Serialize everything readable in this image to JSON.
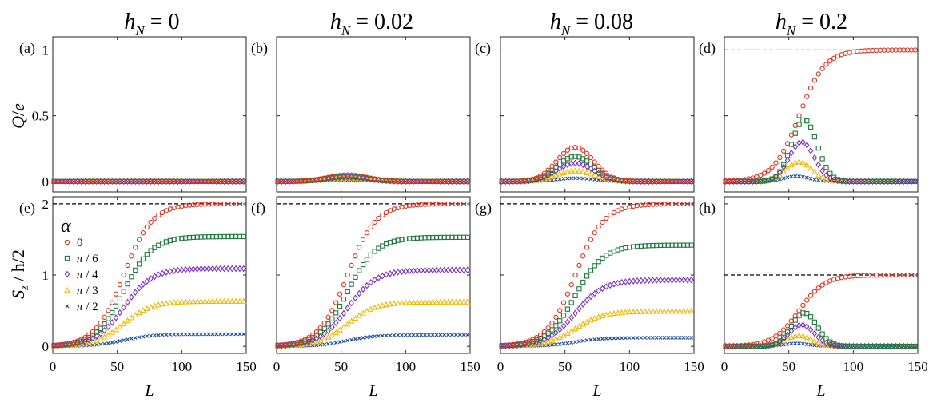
{
  "figure": {
    "column_titles": [
      {
        "h": "h",
        "sub": "N",
        "eq": " = 0"
      },
      {
        "h": "h",
        "sub": "N",
        "eq": " = 0.02"
      },
      {
        "h": "h",
        "sub": "N",
        "eq": " = 0.08"
      },
      {
        "h": "h",
        "sub": "N",
        "eq": " = 0.2"
      }
    ],
    "panel_labels": [
      "(a)",
      "(b)",
      "(c)",
      "(d)",
      "(e)",
      "(f)",
      "(g)",
      "(h)"
    ],
    "row_ylabels": [
      "Q/e",
      "Sz/(ħ/2)"
    ],
    "legend_title": "α",
    "x_label": "L",
    "x_ticks": [
      "0",
      "50",
      "100",
      "150"
    ],
    "q_ticks": [
      "0",
      "0.5",
      "1"
    ],
    "s_ticks": [
      "0",
      "1",
      "2"
    ]
  },
  "chart_data": {
    "type": "scatter",
    "x": {
      "min": 1,
      "max": 150,
      "step": 3,
      "lim": [
        0,
        150
      ],
      "label": "L"
    },
    "series": [
      {
        "name": "0",
        "label": "0",
        "marker": "circle",
        "color": "#e0301e"
      },
      {
        "name": "π/6",
        "label": "π / 6",
        "marker": "square",
        "color": "#1e7a3c"
      },
      {
        "name": "π/4",
        "label": "π / 4",
        "marker": "diamond",
        "color": "#7b2fbf"
      },
      {
        "name": "π/3",
        "label": "π / 3",
        "marker": "triangle",
        "color": "#f0b800"
      },
      {
        "name": "π/2",
        "label": "π / 2",
        "marker": "x",
        "color": "#1f4e9c"
      }
    ],
    "panels": [
      {
        "id": "a",
        "row": "Q",
        "hN": 0,
        "ylim": [
          -0.08,
          1.1
        ],
        "ylabel": "Q/e",
        "curves": [
          {
            "kind": "flat",
            "value": 0
          },
          {
            "kind": "flat",
            "value": 0
          },
          {
            "kind": "flat",
            "value": 0
          },
          {
            "kind": "flat",
            "value": 0
          },
          {
            "kind": "flat",
            "value": 0
          }
        ]
      },
      {
        "id": "b",
        "row": "Q",
        "hN": 0.02,
        "ylim": [
          -0.08,
          1.1
        ],
        "curves": [
          {
            "kind": "bump",
            "peak": 0.05,
            "center": 55,
            "width": 22
          },
          {
            "kind": "bump",
            "peak": 0.04,
            "center": 55,
            "width": 22
          },
          {
            "kind": "bump",
            "peak": 0.035,
            "center": 55,
            "width": 22
          },
          {
            "kind": "bump",
            "peak": 0.025,
            "center": 55,
            "width": 22
          },
          {
            "kind": "bump",
            "peak": 0.01,
            "center": 55,
            "width": 22
          }
        ]
      },
      {
        "id": "c",
        "row": "Q",
        "hN": 0.08,
        "ylim": [
          -0.08,
          1.1
        ],
        "curves": [
          {
            "kind": "bump",
            "peak": 0.26,
            "center": 58,
            "width": 20
          },
          {
            "kind": "bump",
            "peak": 0.19,
            "center": 58,
            "width": 20
          },
          {
            "kind": "bump",
            "peak": 0.14,
            "center": 58,
            "width": 20
          },
          {
            "kind": "bump",
            "peak": 0.08,
            "center": 58,
            "width": 20
          },
          {
            "kind": "bump",
            "peak": 0.025,
            "center": 58,
            "width": 20
          }
        ]
      },
      {
        "id": "d",
        "row": "Q",
        "hN": 0.2,
        "ylim": [
          -0.08,
          1.1
        ],
        "ref_line": 1,
        "curves": [
          {
            "kind": "sigmoid",
            "final": 1.0,
            "mid": 58,
            "scale": 10
          },
          {
            "kind": "bump",
            "peak": 0.47,
            "center": 62,
            "width": 14
          },
          {
            "kind": "bump",
            "peak": 0.3,
            "center": 60,
            "width": 14
          },
          {
            "kind": "bump",
            "peak": 0.15,
            "center": 58,
            "width": 14
          },
          {
            "kind": "bump",
            "peak": 0.04,
            "center": 56,
            "width": 14
          }
        ]
      },
      {
        "id": "e",
        "row": "S",
        "hN": 0,
        "ylim": [
          -0.1,
          2.1
        ],
        "ylabel": "Sz/(ħ/2)",
        "ref_line": 2,
        "legend": true,
        "curves": [
          {
            "kind": "sigmoid",
            "final": 2.0,
            "mid": 55,
            "scale": 11
          },
          {
            "kind": "sigmoid",
            "final": 1.54,
            "mid": 55,
            "scale": 11
          },
          {
            "kind": "sigmoid",
            "final": 1.09,
            "mid": 55,
            "scale": 11
          },
          {
            "kind": "sigmoid",
            "final": 0.63,
            "mid": 55,
            "scale": 11
          },
          {
            "kind": "sigmoid",
            "final": 0.17,
            "mid": 55,
            "scale": 11
          }
        ]
      },
      {
        "id": "f",
        "row": "S",
        "hN": 0.02,
        "ylim": [
          -0.1,
          2.1
        ],
        "ref_line": 2,
        "curves": [
          {
            "kind": "sigmoid",
            "final": 2.0,
            "mid": 55,
            "scale": 11
          },
          {
            "kind": "sigmoid",
            "final": 1.53,
            "mid": 55,
            "scale": 11
          },
          {
            "kind": "sigmoid",
            "final": 1.07,
            "mid": 55,
            "scale": 11
          },
          {
            "kind": "sigmoid",
            "final": 0.62,
            "mid": 55,
            "scale": 11
          },
          {
            "kind": "sigmoid",
            "final": 0.16,
            "mid": 55,
            "scale": 11
          }
        ]
      },
      {
        "id": "g",
        "row": "S",
        "hN": 0.08,
        "ylim": [
          -0.1,
          2.1
        ],
        "ref_line": 2,
        "curves": [
          {
            "kind": "sigmoid",
            "final": 2.0,
            "mid": 58,
            "scale": 11
          },
          {
            "kind": "sigmoid",
            "final": 1.42,
            "mid": 58,
            "scale": 11
          },
          {
            "kind": "sigmoid",
            "final": 0.93,
            "mid": 58,
            "scale": 11
          },
          {
            "kind": "sigmoid",
            "final": 0.49,
            "mid": 58,
            "scale": 11
          },
          {
            "kind": "sigmoid",
            "final": 0.12,
            "mid": 58,
            "scale": 11
          }
        ]
      },
      {
        "id": "h",
        "row": "S",
        "hN": 0.2,
        "ylim": [
          -0.1,
          2.1
        ],
        "ref_line": 1,
        "curves": [
          {
            "kind": "sigmoid",
            "final": 1.0,
            "mid": 58,
            "scale": 10
          },
          {
            "kind": "bump",
            "peak": 0.47,
            "center": 62,
            "width": 14
          },
          {
            "kind": "bump",
            "peak": 0.3,
            "center": 60,
            "width": 14
          },
          {
            "kind": "bump",
            "peak": 0.15,
            "center": 58,
            "width": 14
          },
          {
            "kind": "bump",
            "peak": 0.04,
            "center": 56,
            "width": 14
          }
        ]
      }
    ]
  }
}
